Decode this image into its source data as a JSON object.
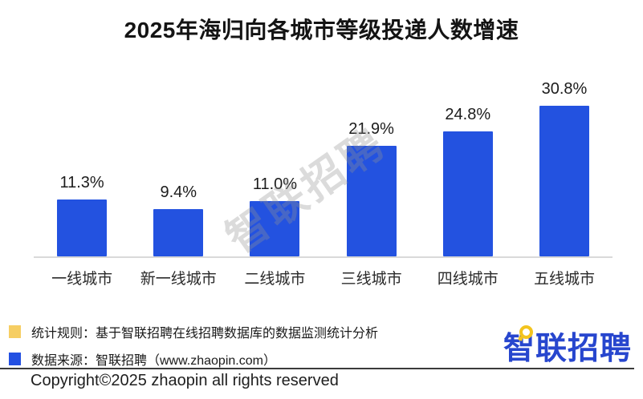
{
  "title": "2025年海归向各城市等级投递人数增速",
  "watermark": {
    "text": "智联招聘"
  },
  "chart_data": {
    "type": "bar",
    "title": "2025年海归向各城市等级投递人数增速",
    "categories": [
      "一线城市",
      "新一线城市",
      "二线城市",
      "三线城市",
      "四线城市",
      "五线城市"
    ],
    "values": [
      11.3,
      9.4,
      11.0,
      21.9,
      24.8,
      30.8
    ],
    "value_labels": [
      "11.3%",
      "9.4%",
      "11.0%",
      "21.9%",
      "24.8%",
      "30.8%"
    ],
    "xlabel": "",
    "ylabel": "",
    "ylim": [
      0,
      33
    ],
    "grid": false,
    "legend_position": "none",
    "bar_color": "#2352E0",
    "axis_line_color": "#d9d9d9"
  },
  "footer": {
    "legend": [
      {
        "swatch_color": "#F6CE63",
        "text": "统计规则：基于智联招聘在线招聘数据库的数据监测统计分析"
      },
      {
        "swatch_color": "#2350E2",
        "text": "数据来源：智联招聘（www.zhaopin.com）"
      }
    ],
    "logo_text": "智联招聘",
    "logo_color": "#2746CE",
    "copyright": "Copyright©2025 zhaopin all rights reserved"
  }
}
